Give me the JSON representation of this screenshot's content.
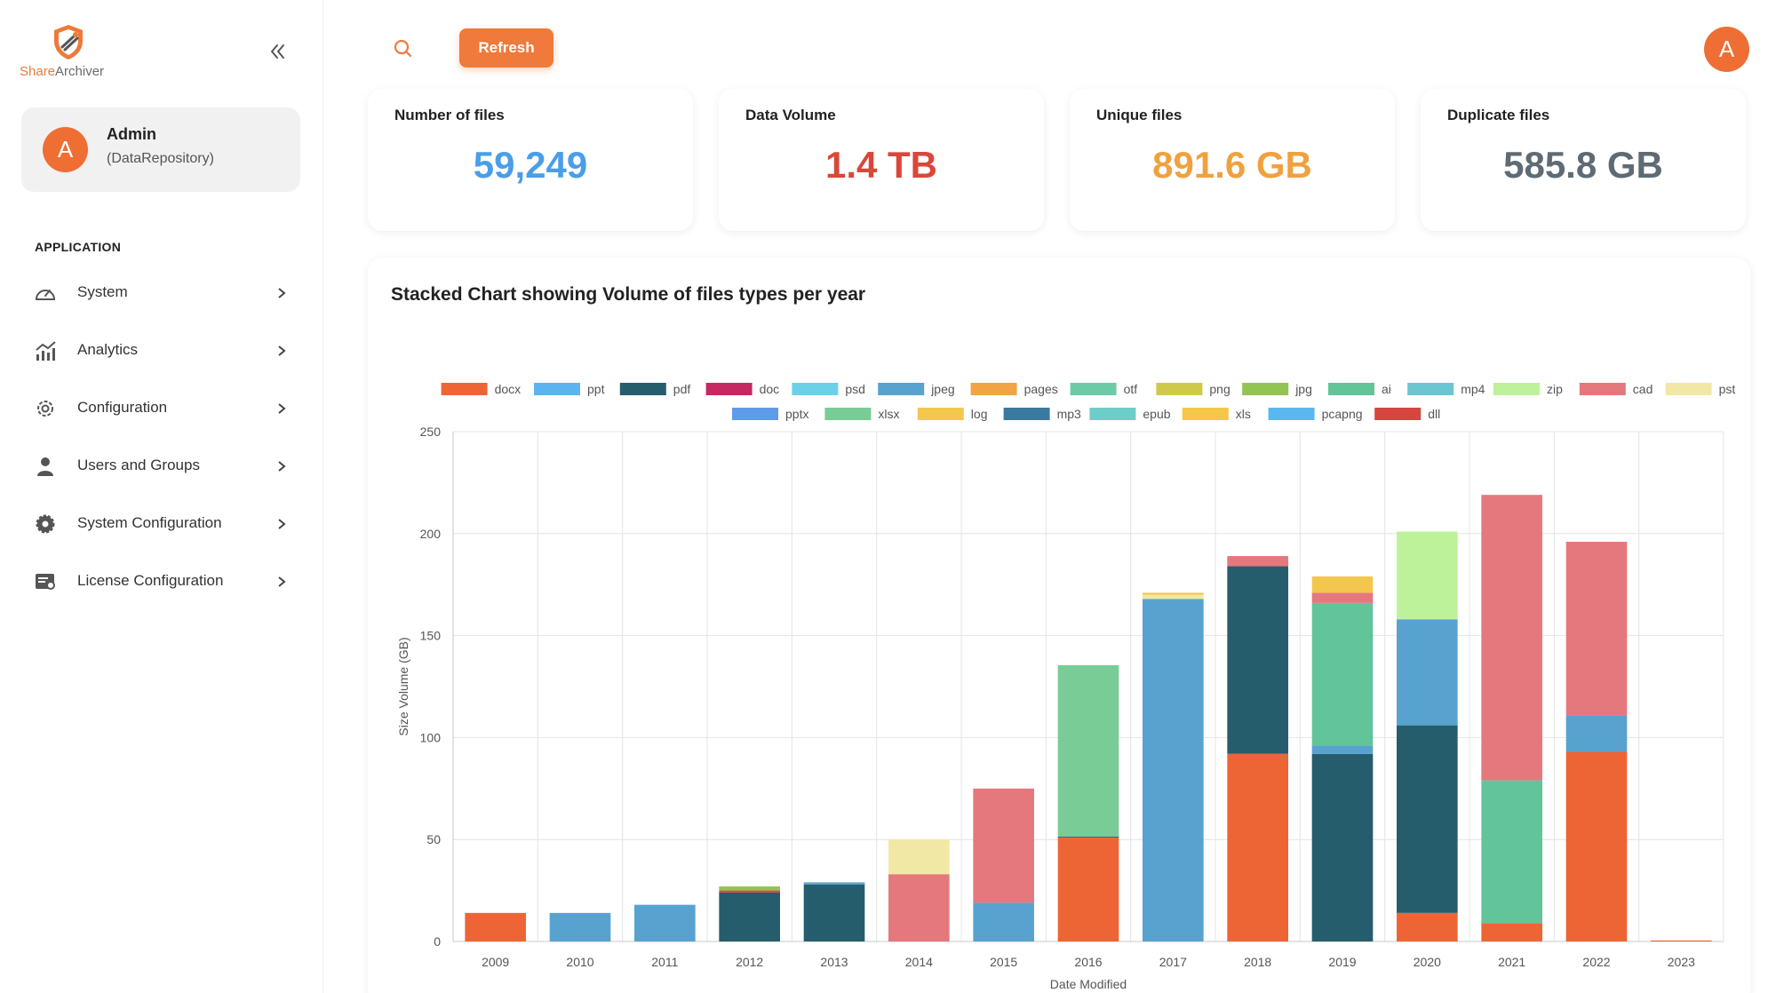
{
  "app": {
    "brand_first": "Share",
    "brand_second": "Archiver",
    "colors": {
      "accent": "#ef7a3b",
      "accent_dark": "#ee6e34"
    }
  },
  "user": {
    "initial": "A",
    "name": "Admin",
    "role": "(DataRepository)"
  },
  "sidebar": {
    "section_title": "APPLICATION",
    "items": [
      {
        "label": "System",
        "icon": "gauge-icon"
      },
      {
        "label": "Analytics",
        "icon": "analytics-chart-icon"
      },
      {
        "label": "Configuration",
        "icon": "gear-outline-icon"
      },
      {
        "label": "Users and Groups",
        "icon": "user-icon"
      },
      {
        "label": "System Configuration",
        "icon": "gear-solid-icon"
      },
      {
        "label": "License Configuration",
        "icon": "license-icon"
      }
    ]
  },
  "topbar": {
    "refresh_label": "Refresh",
    "avatar_initial": "A"
  },
  "stats": [
    {
      "label": "Number of files",
      "value": "59,249",
      "color": "#4a9ee8"
    },
    {
      "label": "Data Volume",
      "value": "1.4 TB",
      "color": "#d9473a"
    },
    {
      "label": "Unique files",
      "value": "891.6 GB",
      "color": "#f0a13f"
    },
    {
      "label": "Duplicate files",
      "value": "585.8 GB",
      "color": "#5f6b74"
    }
  ],
  "chart_title": "Stacked Chart showing Volume of files types per year",
  "chart_data": {
    "type": "bar",
    "stacked": true,
    "xlabel": "Date Modified",
    "ylabel": "Size Volume (GB)",
    "ylim": [
      0,
      250
    ],
    "yticks": [
      0,
      50,
      100,
      150,
      200,
      250
    ],
    "grid": true,
    "legend_position": "top",
    "categories": [
      "2009",
      "2010",
      "2011",
      "2012",
      "2013",
      "2014",
      "2015",
      "2016",
      "2017",
      "2018",
      "2019",
      "2020",
      "2021",
      "2022",
      "2023"
    ],
    "legend": [
      {
        "name": "docx",
        "color": "#ee6535"
      },
      {
        "name": "ppt",
        "color": "#5bb4ef"
      },
      {
        "name": "pdf",
        "color": "#265d6d"
      },
      {
        "name": "doc",
        "color": "#c42a61"
      },
      {
        "name": "psd",
        "color": "#6cd0e8"
      },
      {
        "name": "jpeg",
        "color": "#58a2cf"
      },
      {
        "name": "pages",
        "color": "#f0a444"
      },
      {
        "name": "otf",
        "color": "#6ccba6"
      },
      {
        "name": "png",
        "color": "#cfc94a"
      },
      {
        "name": "jpg",
        "color": "#93c353"
      },
      {
        "name": "ai",
        "color": "#62c59a"
      },
      {
        "name": "mp4",
        "color": "#6cc6d2"
      },
      {
        "name": "zip",
        "color": "#bdf29a"
      },
      {
        "name": "cad",
        "color": "#e5787d"
      },
      {
        "name": "pst",
        "color": "#f2e8a6"
      },
      {
        "name": "pptx",
        "color": "#5e9be8"
      },
      {
        "name": "xlsx",
        "color": "#79cc96"
      },
      {
        "name": "log",
        "color": "#f3c74e"
      },
      {
        "name": "mp3",
        "color": "#3a7aa0"
      },
      {
        "name": "epub",
        "color": "#6dcdc8"
      },
      {
        "name": "xls",
        "color": "#f6c64a"
      },
      {
        "name": "pcapng",
        "color": "#5ab7ef"
      },
      {
        "name": "dll",
        "color": "#d4463e"
      }
    ],
    "series": [
      {
        "name": "docx",
        "values": [
          14,
          0,
          0,
          0,
          0,
          0,
          0,
          51,
          0,
          92,
          0,
          14,
          9,
          93,
          0.5
        ]
      },
      {
        "name": "pdf",
        "values": [
          0,
          0,
          0,
          24,
          28,
          0,
          0,
          0.5,
          0,
          92,
          92,
          92,
          0,
          0,
          0
        ]
      },
      {
        "name": "jpeg",
        "values": [
          0,
          14,
          18,
          0,
          1,
          0,
          19,
          0,
          168,
          0,
          4,
          52,
          0,
          18,
          0
        ]
      },
      {
        "name": "ai",
        "values": [
          0,
          0,
          0,
          0,
          0,
          0,
          0,
          0,
          0,
          0,
          70,
          0,
          70,
          0,
          0
        ]
      },
      {
        "name": "xlsx",
        "values": [
          0,
          0,
          0,
          0,
          0,
          0,
          0,
          84,
          0,
          0,
          0,
          0,
          0,
          0,
          0
        ]
      },
      {
        "name": "dll",
        "values": [
          0,
          0,
          0,
          1,
          0,
          0,
          0,
          0,
          0,
          0,
          0,
          0,
          0,
          0,
          0
        ]
      },
      {
        "name": "jpg",
        "values": [
          0,
          0,
          0,
          2,
          0,
          0,
          0,
          0,
          0,
          0,
          0,
          0,
          0,
          0,
          0
        ]
      },
      {
        "name": "cad",
        "values": [
          0,
          0,
          0,
          0,
          0,
          33,
          56,
          0,
          0,
          5,
          5,
          0,
          140,
          85,
          0
        ]
      },
      {
        "name": "pst",
        "values": [
          0,
          0,
          0,
          0,
          0,
          17,
          0,
          0,
          2,
          0,
          0,
          0,
          0,
          0,
          0
        ]
      },
      {
        "name": "log",
        "values": [
          0,
          0,
          0,
          0,
          0,
          0,
          0,
          0,
          1,
          0,
          8,
          0,
          0,
          0,
          0
        ]
      },
      {
        "name": "zip",
        "values": [
          0,
          0,
          0,
          0,
          0,
          0,
          0,
          0,
          0,
          0,
          0,
          43,
          0,
          0,
          0
        ]
      }
    ]
  }
}
